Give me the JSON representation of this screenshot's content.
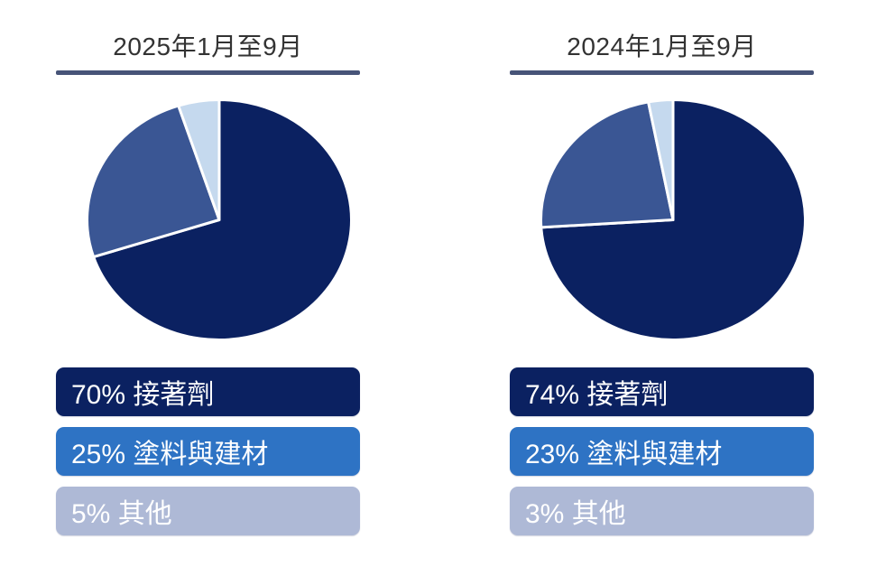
{
  "styles": {
    "background": "#FFFFFF",
    "title_color": "#333333",
    "underline_color": "#475478",
    "legend_text_color": "#FFFFFF",
    "slice_separator_color": "#FFFFFF"
  },
  "chart_data": [
    {
      "type": "pie",
      "title": "2025年1月至9月",
      "labels": [
        "接著劑",
        "塗料與建材",
        "其他"
      ],
      "values": [
        70,
        25,
        5
      ],
      "unit": "%",
      "start_angle_deg": 0,
      "direction": "clockwise",
      "colors": [
        "#0B2161",
        "#3A5694",
        "#C5D9EE"
      ],
      "legend_colors": [
        "#0B2161",
        "#2E73C4",
        "#AEB9D6"
      ],
      "legend_labels": [
        "70% 接著劑",
        "25% 塗料與建材",
        "5% 其他"
      ],
      "legend_position": "below"
    },
    {
      "type": "pie",
      "title": "2024年1月至9月",
      "labels": [
        "接著劑",
        "塗料與建材",
        "其他"
      ],
      "values": [
        74,
        23,
        3
      ],
      "unit": "%",
      "start_angle_deg": 0,
      "direction": "clockwise",
      "colors": [
        "#0B2161",
        "#3A5694",
        "#C5D9EE"
      ],
      "legend_colors": [
        "#0B2161",
        "#2E73C4",
        "#AEB9D6"
      ],
      "legend_labels": [
        "74% 接著劑",
        "23% 塗料與建材",
        "3% 其他"
      ],
      "legend_position": "below"
    }
  ]
}
